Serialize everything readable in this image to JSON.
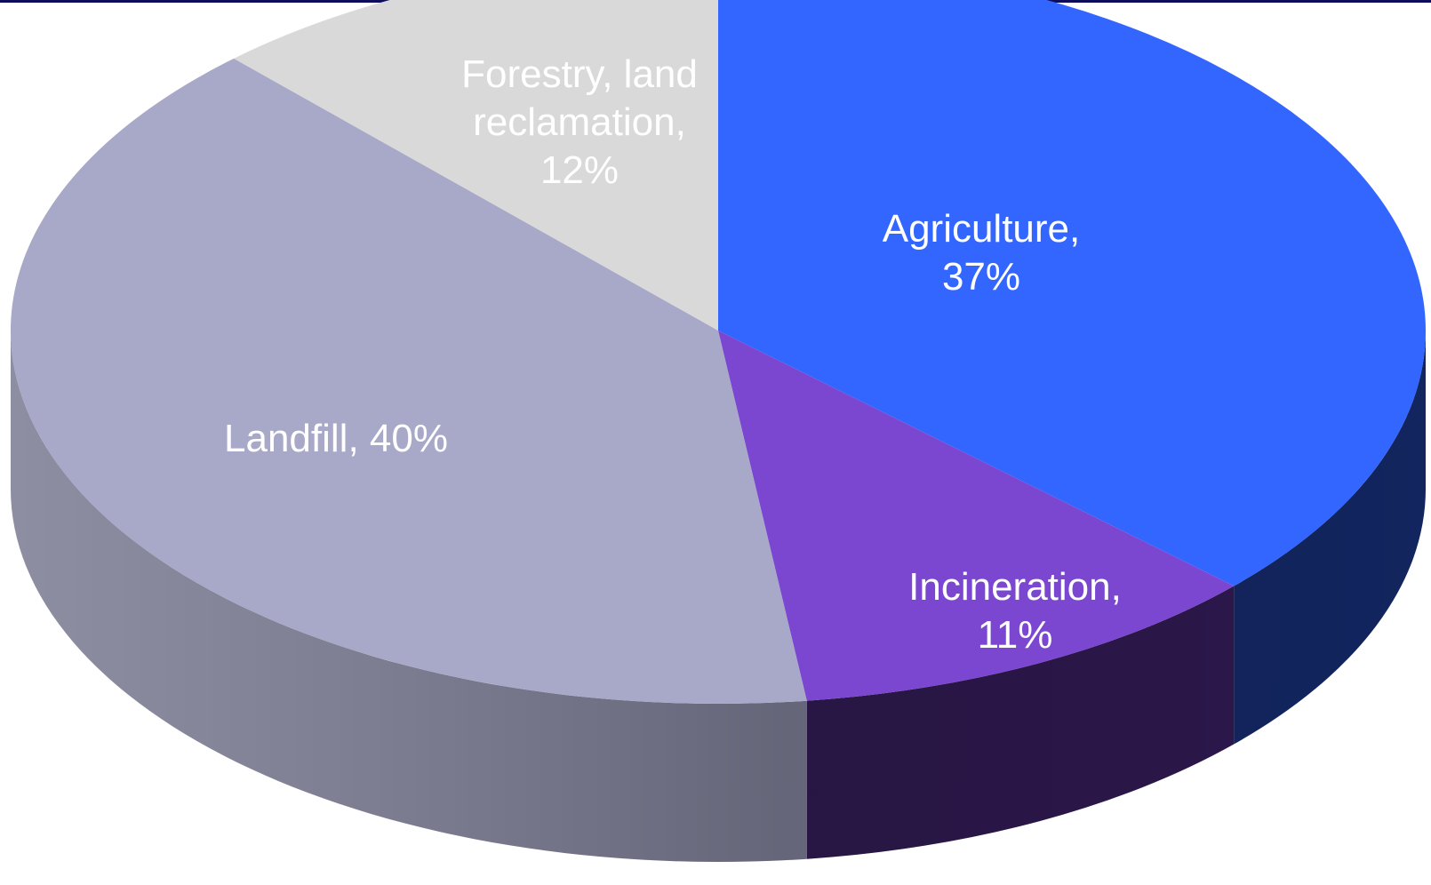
{
  "chart_data": {
    "type": "pie",
    "style": "3d",
    "title": "",
    "slices": [
      {
        "name": "Agriculture",
        "value": 37,
        "color": "#3366ff",
        "side_color": "#142866",
        "label_lines": [
          "Agriculture,",
          "37%"
        ]
      },
      {
        "name": "Incineration",
        "value": 11,
        "color": "#7b47d1",
        "side_color": "#301a52",
        "label_lines": [
          "Incineration,",
          "11%"
        ]
      },
      {
        "name": "Landfill",
        "value": 40,
        "color": "#a8a8c8",
        "side_color": "#7c7c94",
        "label_lines": [
          "Landfill, 40%"
        ]
      },
      {
        "name": "Forestry, land reclamation",
        "value": 12,
        "color": "#d9d9d9",
        "side_color": "#a3a3a3",
        "label_lines": [
          "Forestry, land",
          "reclamation,",
          "12%"
        ]
      }
    ]
  }
}
